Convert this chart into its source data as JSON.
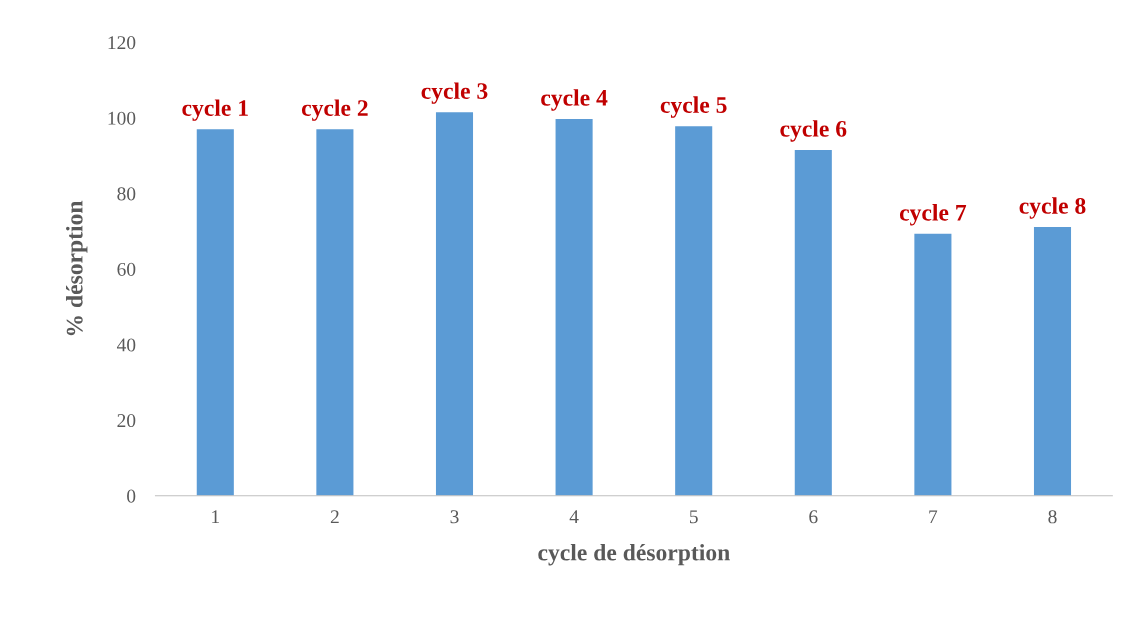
{
  "chart_data": {
    "type": "bar",
    "xlabel": "cycle de désorption",
    "ylabel": "% désorption",
    "categories": [
      "1",
      "2",
      "3",
      "4",
      "5",
      "6",
      "7",
      "8"
    ],
    "values": [
      97.0,
      97.0,
      101.5,
      99.7,
      97.8,
      91.5,
      69.3,
      71.1
    ],
    "color": "#5b9bd5",
    "ylim": [
      0,
      120
    ],
    "yticks": [
      0,
      20,
      40,
      60,
      80,
      100,
      120
    ],
    "grid": false,
    "annotations": [
      {
        "text": "cycle 1",
        "x": "1",
        "y": 97.0
      },
      {
        "text": "cycle 2",
        "x": "2",
        "y": 97.0
      },
      {
        "text": "cycle 3",
        "x": "3",
        "y": 101.5
      },
      {
        "text": "cycle 4",
        "x": "4",
        "y": 99.7
      },
      {
        "text": "cycle 5",
        "x": "5",
        "y": 97.8
      },
      {
        "text": "cycle 6",
        "x": "6",
        "y": 91.5
      },
      {
        "text": "cycle 7",
        "x": "7",
        "y": 69.3
      },
      {
        "text": "cycle 8",
        "x": "8",
        "y": 71.1
      }
    ]
  }
}
